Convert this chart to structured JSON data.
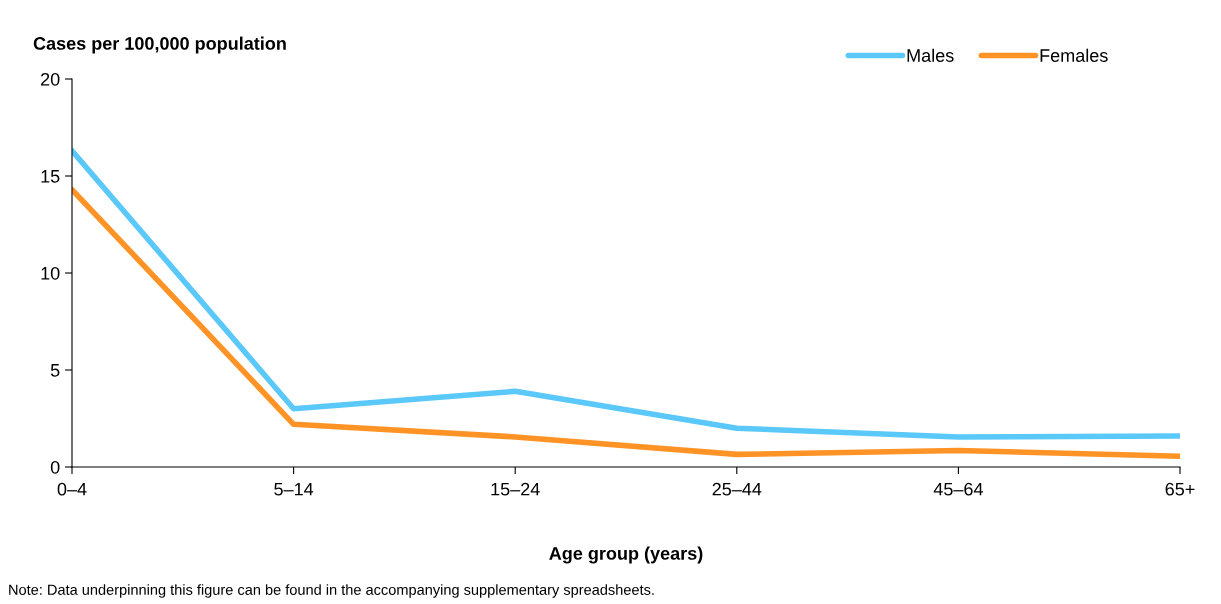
{
  "chart_data": {
    "type": "line",
    "ylabel": "Cases per 100,000 population",
    "xlabel": "Age group (years)",
    "categories": [
      "0–4",
      "5–14",
      "15–24",
      "25–44",
      "45–64",
      "65+"
    ],
    "series": [
      {
        "name": "Males",
        "color": "#5bc8fa",
        "values": [
          16.3,
          3.0,
          3.9,
          2.0,
          1.55,
          1.6
        ]
      },
      {
        "name": "Females",
        "color": "#ff9326",
        "values": [
          14.3,
          2.2,
          1.55,
          0.65,
          0.85,
          0.55
        ]
      }
    ],
    "ylim": [
      0,
      20
    ],
    "yticks": [
      0,
      5,
      10,
      15,
      20
    ],
    "grid": false,
    "legend": "top right",
    "marker": "none",
    "line_style": "solid",
    "annotations": [
      "Note: Data underpinning this figure can be found in the accompanying supplementary spreadsheets."
    ]
  }
}
